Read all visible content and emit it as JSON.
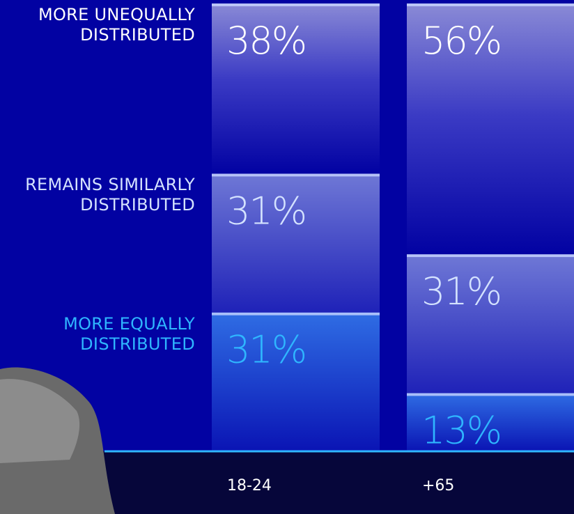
{
  "chart_data": {
    "type": "stacked-bar",
    "categories": [
      "18-24",
      "+65"
    ],
    "series": [
      {
        "name": "MORE EQUALLY DISTRIBUTED",
        "color": "#2fb6ff",
        "values": [
          31,
          13
        ],
        "value_labels": [
          "31%",
          "13%"
        ]
      },
      {
        "name": "REMAINS SIMILARLY DISTRIBUTED",
        "color": "#d4e2ff",
        "values": [
          31,
          31
        ],
        "value_labels": [
          "31%",
          "31%"
        ]
      },
      {
        "name": "MORE UNEQUALLY DISTRIBUTED",
        "color": "#ffffff",
        "values": [
          38,
          56
        ],
        "value_labels": [
          "38%",
          "56%"
        ]
      }
    ],
    "ylim": [
      0,
      100
    ]
  }
}
